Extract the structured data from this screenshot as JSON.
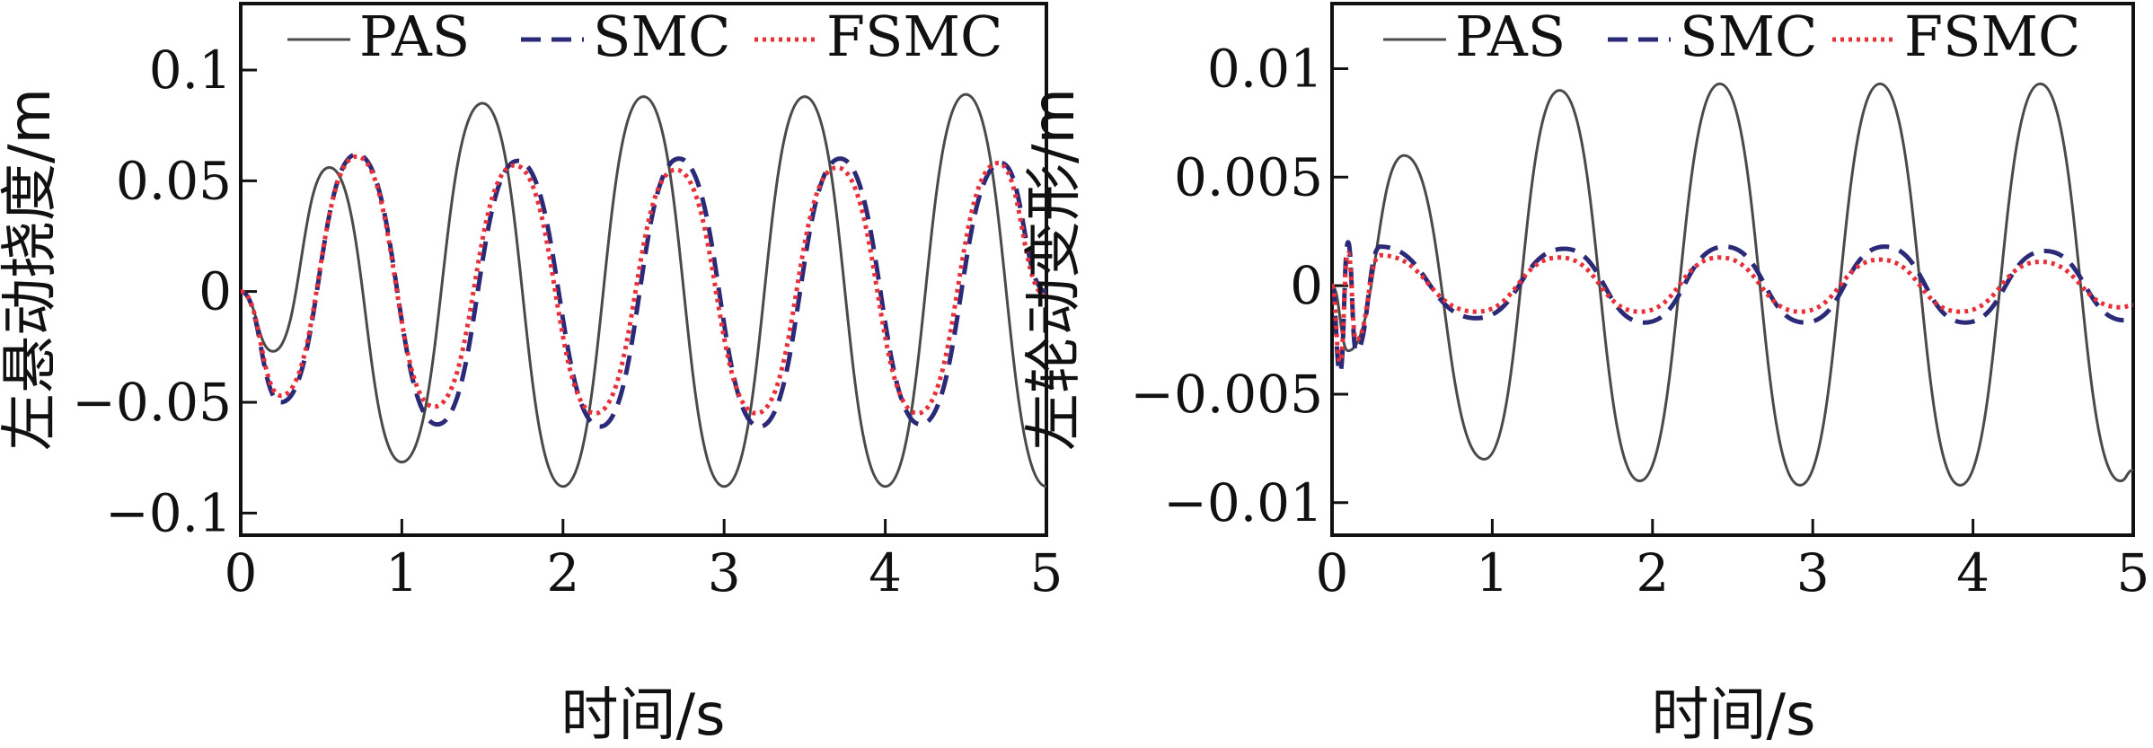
{
  "chart_data": [
    {
      "type": "line",
      "ylabel": "左悬动挠度/m",
      "xlabel": "时间/s",
      "xlim": [
        0,
        5
      ],
      "ylim": [
        -0.11,
        0.13
      ],
      "xticks": [
        0,
        1,
        2,
        3,
        4,
        5
      ],
      "xtick_labels": [
        "0",
        "1",
        "2",
        "3",
        "4",
        "5"
      ],
      "yticks": [
        -0.1,
        -0.05,
        0,
        0.05,
        0.1
      ],
      "ytick_labels": [
        "−0.1",
        "−0.05",
        "0",
        "0.05",
        "0.1"
      ],
      "grid": false,
      "legend_position": "top",
      "series": [
        {
          "name": "PAS",
          "style": "solid",
          "color": "#4a4a4a",
          "x": [
            0,
            0.2,
            0.55,
            1.0,
            1.5,
            2.0,
            2.5,
            3.0,
            3.5,
            4.0,
            4.5,
            5.0
          ],
          "y": [
            0,
            -0.027,
            0.056,
            -0.077,
            0.085,
            -0.088,
            0.088,
            -0.088,
            0.088,
            -0.088,
            0.089,
            -0.088
          ]
        },
        {
          "name": "SMC",
          "style": "dashed",
          "color": "#2a2a78",
          "x": [
            0,
            0.25,
            0.72,
            1.22,
            1.72,
            2.23,
            2.72,
            3.22,
            3.72,
            4.22,
            4.72,
            5.0
          ],
          "y": [
            0,
            -0.05,
            0.062,
            -0.06,
            0.059,
            -0.061,
            0.06,
            -0.061,
            0.06,
            -0.06,
            0.058,
            0
          ]
        },
        {
          "name": "FSMC",
          "style": "dotted",
          "color": "#e8303a",
          "x": [
            0,
            0.25,
            0.72,
            1.2,
            1.7,
            2.2,
            2.7,
            3.2,
            3.7,
            4.2,
            4.7,
            5.0
          ],
          "y": [
            0,
            -0.047,
            0.061,
            -0.052,
            0.057,
            -0.055,
            0.055,
            -0.055,
            0.056,
            -0.055,
            0.058,
            -0.002
          ]
        }
      ]
    },
    {
      "type": "line",
      "ylabel": "左轮动变形/m",
      "xlabel": "时间/s",
      "xlim": [
        0,
        5
      ],
      "ylim": [
        -0.0115,
        0.013
      ],
      "xticks": [
        0,
        1,
        2,
        3,
        4,
        5
      ],
      "xtick_labels": [
        "0",
        "1",
        "2",
        "3",
        "4",
        "5"
      ],
      "yticks": [
        -0.01,
        -0.005,
        0,
        0.005,
        0.01
      ],
      "ytick_labels": [
        "−0.01",
        "−0.005",
        "0",
        "0.005",
        "0.01"
      ],
      "grid": false,
      "legend_position": "top",
      "series": [
        {
          "name": "PAS",
          "style": "solid",
          "color": "#4a4a4a",
          "x": [
            0,
            0.1,
            0.45,
            0.95,
            1.42,
            1.92,
            2.42,
            2.92,
            3.42,
            3.92,
            4.42,
            4.92,
            5.0
          ],
          "y": [
            0,
            -0.003,
            0.006,
            -0.008,
            0.009,
            -0.009,
            0.0093,
            -0.0092,
            0.0093,
            -0.0092,
            0.0093,
            -0.009,
            -0.0085
          ]
        },
        {
          "name": "SMC",
          "style": "dashed",
          "color": "#2a2a78",
          "x": [
            0,
            0.05,
            0.1,
            0.15,
            0.3,
            0.9,
            1.45,
            1.95,
            2.45,
            2.95,
            3.45,
            3.95,
            4.45,
            4.95,
            5.0
          ],
          "y": [
            0,
            -0.004,
            0.002,
            -0.003,
            0.0018,
            -0.0015,
            0.0017,
            -0.0017,
            0.0018,
            -0.0017,
            0.0018,
            -0.0017,
            0.0016,
            -0.0016,
            -0.0014
          ]
        },
        {
          "name": "FSMC",
          "style": "dotted",
          "color": "#e8303a",
          "x": [
            0,
            0.05,
            0.1,
            0.15,
            0.3,
            0.9,
            1.42,
            1.92,
            2.42,
            2.92,
            3.42,
            3.92,
            4.42,
            4.92,
            5.0
          ],
          "y": [
            0,
            -0.0035,
            0.0015,
            -0.0025,
            0.0014,
            -0.0012,
            0.0013,
            -0.0012,
            0.0013,
            -0.0012,
            0.0012,
            -0.0012,
            0.0011,
            -0.001,
            -0.0009
          ]
        }
      ]
    }
  ]
}
